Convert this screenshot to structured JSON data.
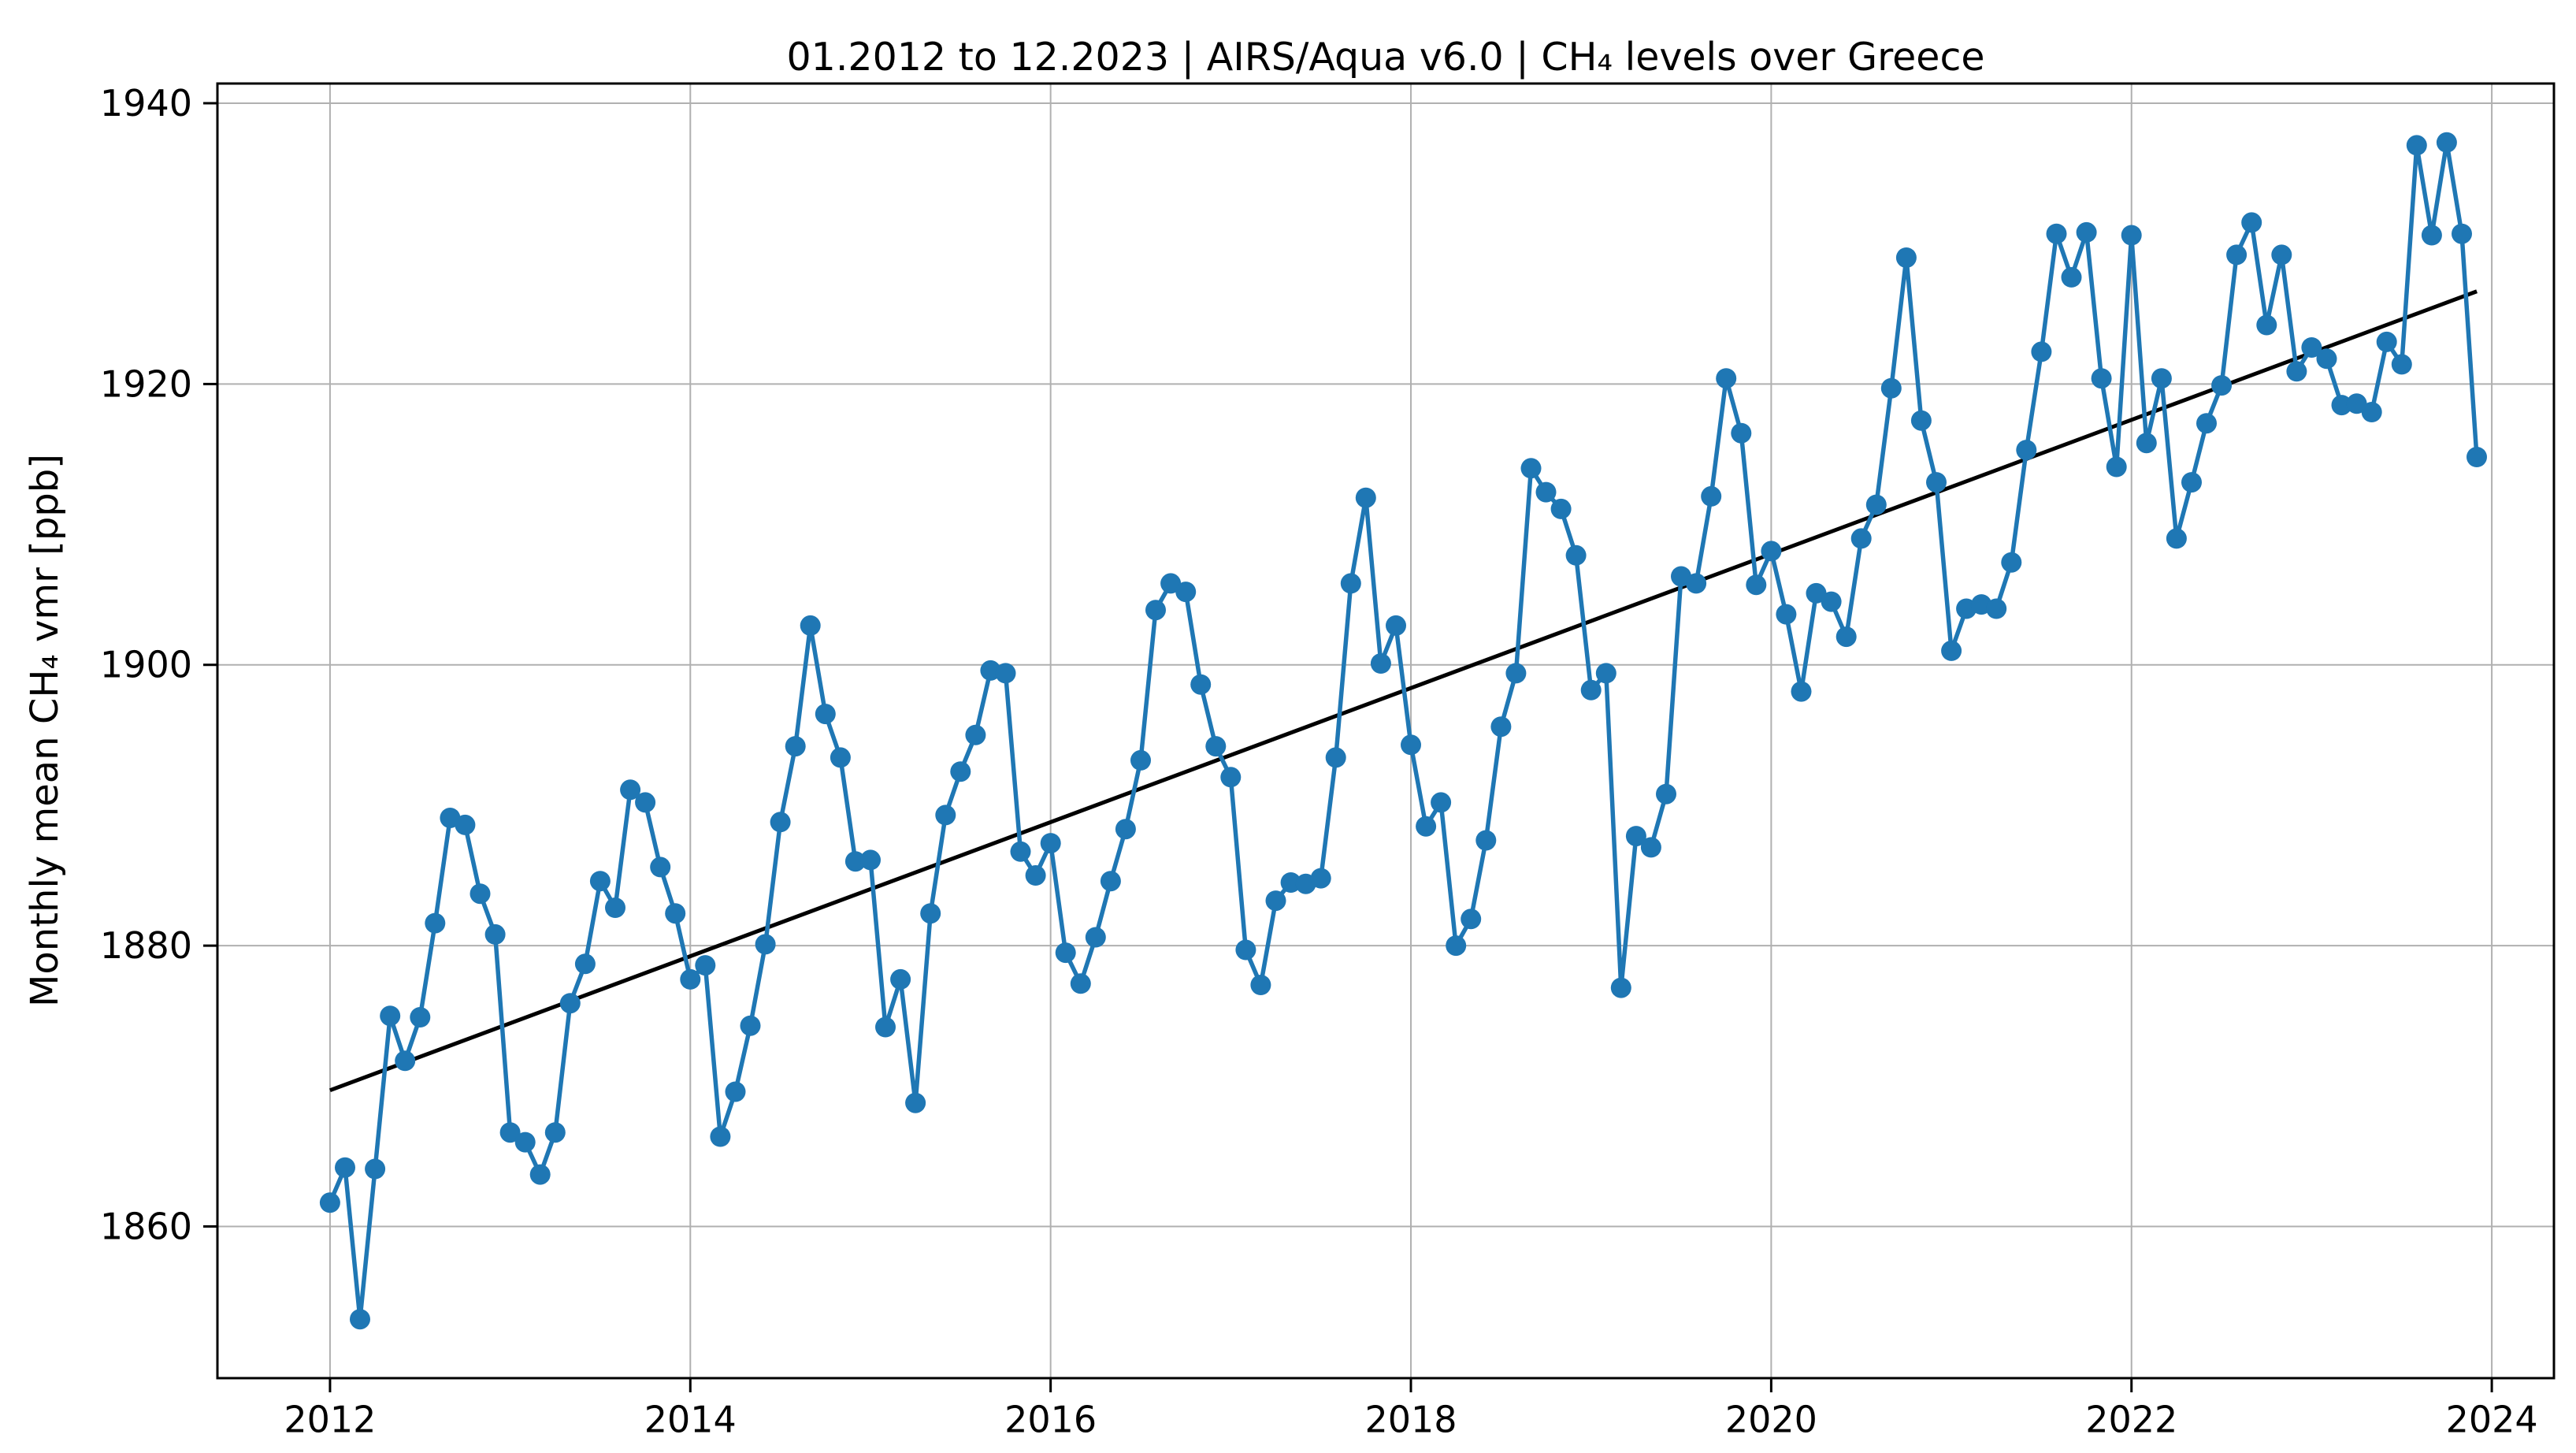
{
  "title": "01.2012 to 12.2023 | AIRS/Aqua v6.0 | CH₄ levels over Greece",
  "chart_data": {
    "type": "line",
    "title": "01.2012 to 12.2023 | AIRS/Aqua v6.0 | CH₄ levels over Greece",
    "xlabel": "",
    "ylabel": "Monthly mean CH₄ vmr [ppb]",
    "x_tick_labels": [
      "2012",
      "2014",
      "2016",
      "2018",
      "2020",
      "2022",
      "2024"
    ],
    "x_tick_values": [
      2012,
      2014,
      2016,
      2018,
      2020,
      2022,
      2024
    ],
    "y_tick_labels": [
      "1860",
      "1880",
      "1900",
      "1920",
      "1940"
    ],
    "y_tick_values": [
      1860,
      1880,
      1900,
      1920,
      1940
    ],
    "xlim": [
      2011.375,
      2024.345
    ],
    "ylim": [
      1849.2,
      1941.4
    ],
    "grid": true,
    "legend_position": "none",
    "series": [
      {
        "name": "monthly-mean-ch4",
        "type": "line-with-markers",
        "color": "#1f77b4",
        "marker": "circle",
        "start_year": 2012,
        "start_month": 1,
        "cadence": "monthly",
        "values": [
          1861.7,
          1864.2,
          1853.4,
          1864.1,
          1875.0,
          1871.8,
          1874.9,
          1881.6,
          1889.1,
          1888.6,
          1883.7,
          1880.8,
          1866.7,
          1866.0,
          1863.7,
          1866.7,
          1875.9,
          1878.7,
          1884.6,
          1882.7,
          1891.1,
          1890.2,
          1885.6,
          1882.3,
          1877.6,
          1878.6,
          1866.4,
          1869.6,
          1874.3,
          1880.1,
          1888.8,
          1894.2,
          1902.8,
          1896.5,
          1893.4,
          1886.0,
          1886.1,
          1874.2,
          1877.6,
          1868.8,
          1882.3,
          1889.3,
          1892.4,
          1895.0,
          1899.6,
          1899.4,
          1886.7,
          1885.0,
          1887.3,
          1879.5,
          1877.3,
          1880.6,
          1884.6,
          1888.3,
          1893.2,
          1903.9,
          1905.8,
          1905.2,
          1898.6,
          1894.2,
          1892.0,
          1879.7,
          1877.2,
          1883.2,
          1884.5,
          1884.4,
          1884.8,
          1893.4,
          1905.8,
          1911.9,
          1900.1,
          1902.8,
          1894.3,
          1888.5,
          1890.2,
          1880.0,
          1881.9,
          1887.5,
          1895.6,
          1899.4,
          1914.0,
          1912.3,
          1911.1,
          1907.8,
          1898.2,
          1899.4,
          1877.0,
          1887.8,
          1887.0,
          1890.8,
          1906.3,
          1905.8,
          1912.0,
          1920.4,
          1916.5,
          1905.7,
          1908.1,
          1903.6,
          1898.1,
          1905.1,
          1904.5,
          1902.0,
          1909.0,
          1911.4,
          1919.7,
          1929.0,
          1917.4,
          1913.0,
          1901.0,
          1904.0,
          1904.3,
          1904.0,
          1907.3,
          1915.3,
          1922.3,
          1930.7,
          1927.6,
          1930.8,
          1920.4,
          1914.1,
          1930.6,
          1915.8,
          1920.4,
          1909.0,
          1913.0,
          1917.2,
          1919.9,
          1929.2,
          1931.5,
          1924.2,
          1929.2,
          1920.9,
          1922.6,
          1921.8,
          1918.5,
          1918.6,
          1918.0,
          1923.0,
          1921.4,
          1937.0,
          1930.6,
          1937.2,
          1930.7,
          1914.8
        ]
      },
      {
        "name": "linear-trend",
        "type": "line",
        "color": "#000000",
        "points": [
          {
            "x": 2012.0,
            "y": 1869.7
          },
          {
            "x": 2023.917,
            "y": 1926.6
          }
        ]
      }
    ]
  },
  "colors": {
    "data_line": "#1f77b4",
    "trend_line": "#000000",
    "gridline": "#b0b0b0",
    "axis": "#000000",
    "background": "#ffffff",
    "text": "#000000"
  }
}
